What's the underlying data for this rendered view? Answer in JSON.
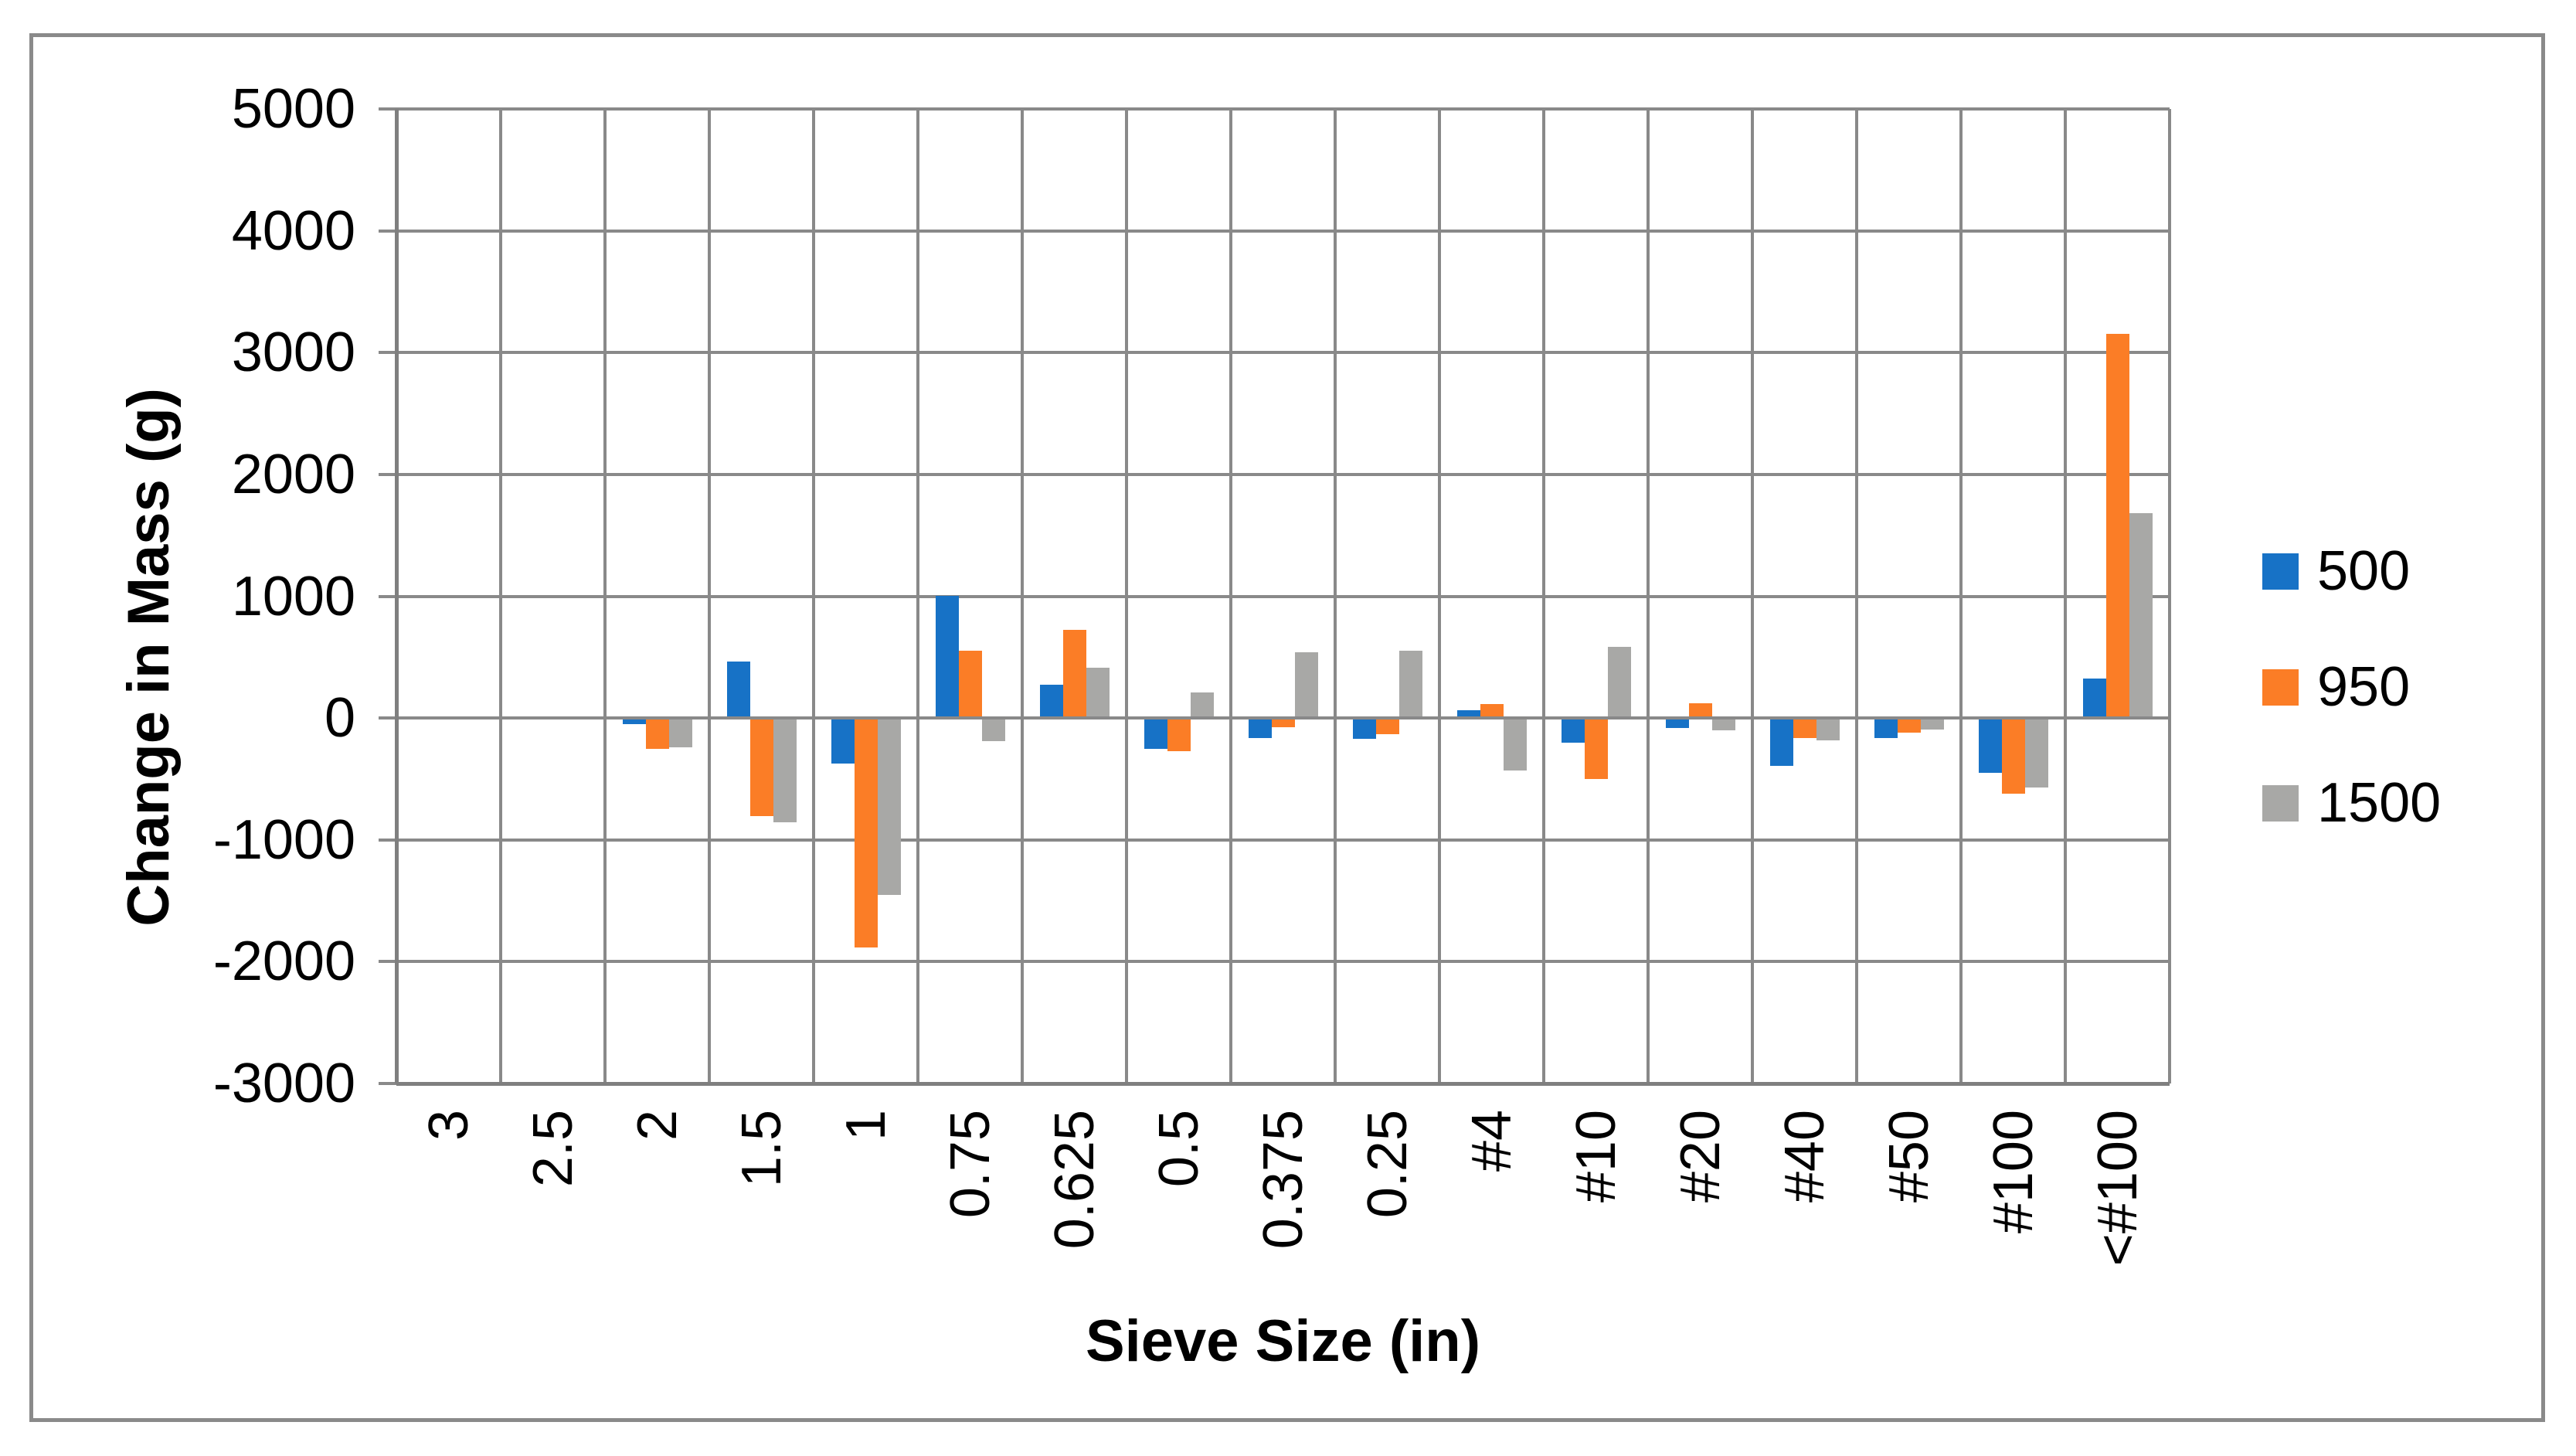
{
  "page": {
    "background": "#FFFFFF",
    "frame_border_color": "#8A8A8A"
  },
  "chart_data": {
    "type": "bar",
    "title": "",
    "xlabel": "Sieve Size (in)",
    "ylabel": "Change in Mass (g)",
    "categories": [
      "3",
      "2.5",
      "2",
      "1.5",
      "1",
      "0.75",
      "0.625",
      "0.5",
      "0.375",
      "0.25",
      "#4",
      "#10",
      "#20",
      "#40",
      "#50",
      "#100",
      "<#100"
    ],
    "series": [
      {
        "name": "500",
        "color": "#1772C6",
        "values": [
          0,
          0,
          -40,
          450,
          -360,
          990,
          260,
          -240,
          -150,
          -160,
          50,
          -190,
          -70,
          -380,
          -150,
          -440,
          310
        ]
      },
      {
        "name": "950",
        "color": "#FB7D26",
        "values": [
          0,
          0,
          -240,
          -790,
          -1870,
          540,
          710,
          -260,
          -60,
          -120,
          100,
          -490,
          110,
          -150,
          -110,
          -610,
          3140
        ]
      },
      {
        "name": "1500",
        "color": "#A8A8A6",
        "values": [
          0,
          0,
          -230,
          -840,
          -1440,
          -180,
          400,
          200,
          530,
          540,
          -420,
          570,
          -90,
          -170,
          -80,
          -560,
          1670
        ]
      }
    ],
    "ylim": [
      -3000,
      5000
    ],
    "ytick_step": 1000,
    "y_tick_labels": [
      "5000",
      "4000",
      "3000",
      "2000",
      "1000",
      "0",
      "-1000",
      "-2000",
      "-3000"
    ],
    "grid": true,
    "gridline_color": "#898989",
    "legend_position": "right"
  }
}
